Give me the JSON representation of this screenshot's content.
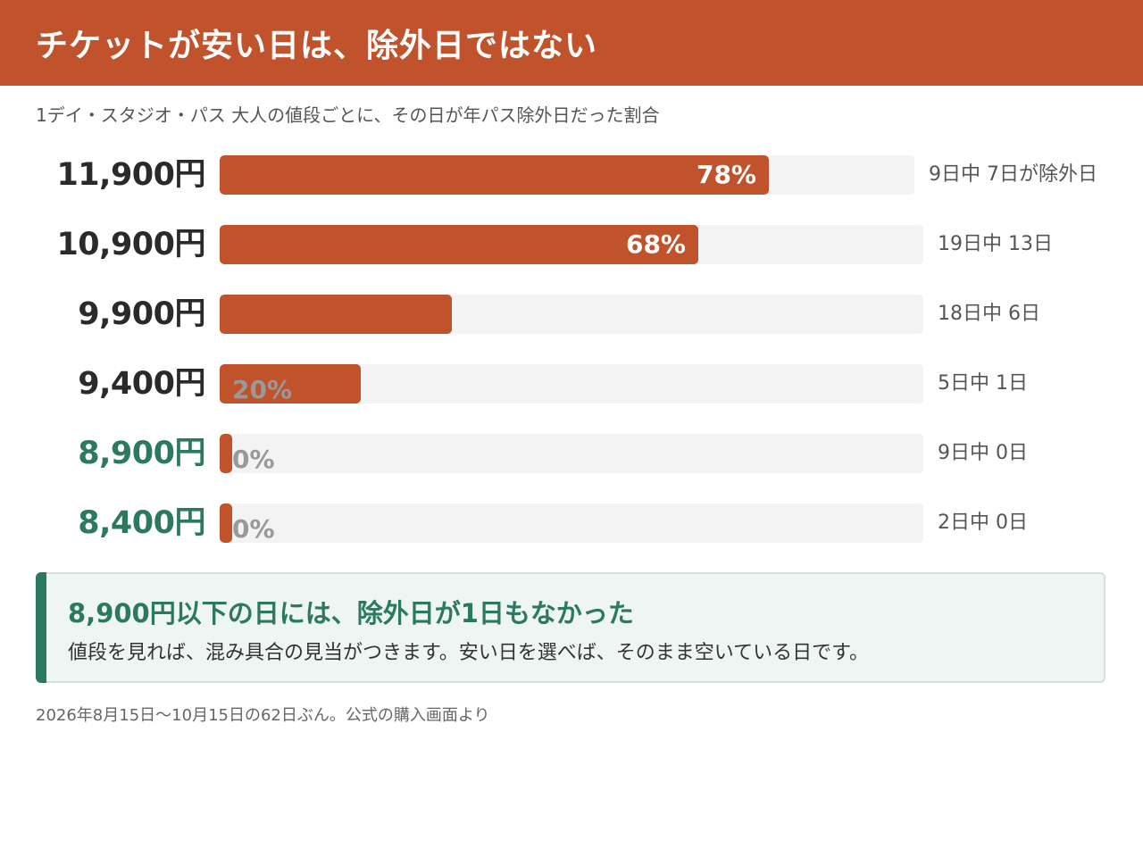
{
  "header": {
    "title": "チケットが安い日は、除外日ではない"
  },
  "subtitle": "1デイ・スタジオ・パス 大人の値段ごとに、その日が年パス除外日だった割合",
  "colors": {
    "accent": "#c0532c",
    "green": "#2b7a5f",
    "track": "#f3f3f3"
  },
  "chart_data": {
    "type": "bar",
    "orientation": "horizontal",
    "categories": [
      "11,900円",
      "10,900円",
      "9,900円",
      "9,400円",
      "8,900円",
      "8,400円"
    ],
    "values": [
      78,
      68,
      33,
      20,
      0,
      0
    ],
    "value_labels": [
      "78%",
      "68%",
      "",
      "20%",
      "0%",
      "0%"
    ],
    "counts": [
      "9日中 7日が除外日",
      "19日中 13日",
      "18日中 6日",
      "5日中 1日",
      "9日中 0日",
      "2日中 0日"
    ],
    "highlight": [
      false,
      false,
      false,
      false,
      true,
      true
    ],
    "xlim": [
      0,
      100
    ],
    "unit": "%"
  },
  "callout": {
    "heading": "8,900円以下の日には、除外日が1日もなかった",
    "body": "値段を見れば、混み具合の見当がつきます。安い日を選べば、そのまま空いている日です。"
  },
  "footnote": "2026年8月15日〜10月15日の62日ぶん。公式の購入画面より"
}
